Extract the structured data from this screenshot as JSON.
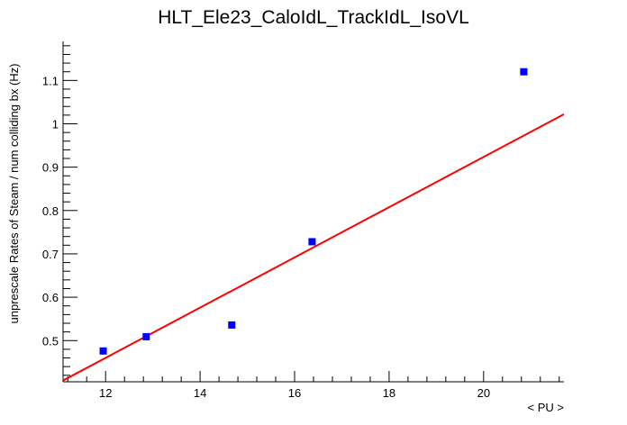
{
  "chart_data": {
    "type": "scatter",
    "title": "HLT_Ele23_CaloIdL_TrackIdL_IsoVL",
    "xlabel": "< PU >",
    "ylabel": "unprescale Rates of Steam / num colliding bx (Hz)",
    "xlim": [
      11.1,
      21.7
    ],
    "ylim": [
      0.405,
      1.19
    ],
    "xticks": [
      12,
      14,
      16,
      18,
      20
    ],
    "xtick_labels": [
      "12",
      "14",
      "16",
      "18",
      "20"
    ],
    "yticks": [
      0.5,
      0.6,
      0.7,
      0.8,
      0.9,
      1.0,
      1.1
    ],
    "ytick_labels": [
      "0.5",
      "0.6",
      "0.7",
      "0.8",
      "0.9",
      "1",
      "1.1"
    ],
    "grid": false,
    "legend": false,
    "points": [
      {
        "x": 11.95,
        "y": 0.476
      },
      {
        "x": 12.86,
        "y": 0.509
      },
      {
        "x": 14.67,
        "y": 0.536
      },
      {
        "x": 16.37,
        "y": 0.728
      },
      {
        "x": 20.85,
        "y": 1.12
      }
    ],
    "fit_line": {
      "x": [
        11.1,
        21.7
      ],
      "y": [
        0.408,
        1.022
      ]
    },
    "colors": {
      "points": "#0000ff",
      "fit": "#ff0000",
      "axes": "#000000"
    }
  }
}
